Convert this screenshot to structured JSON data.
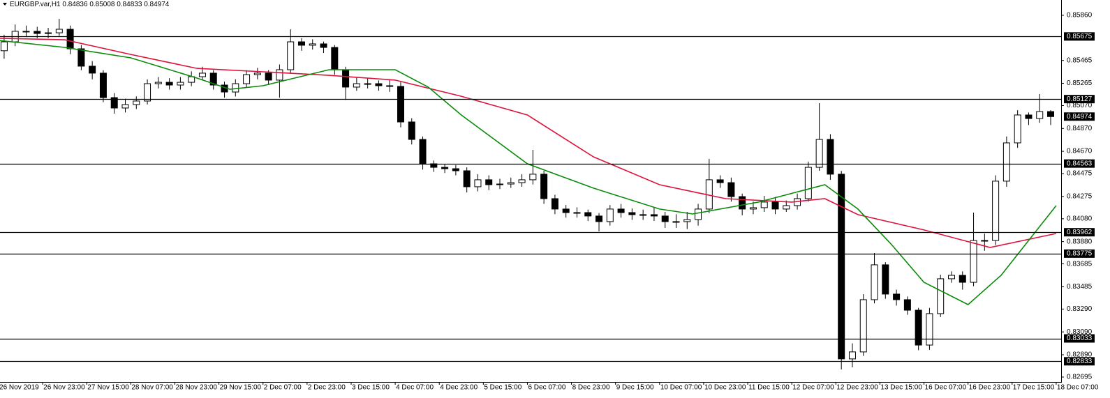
{
  "chart_data": {
    "type": "candlestick",
    "title": "EURGBP.var,H1",
    "ohlc": [
      0.84836,
      0.85008,
      0.84833,
      0.84974
    ],
    "bid": 0.84974,
    "up_color": "#ffffff",
    "down_color": "#000000",
    "x": [
      2,
      6,
      10,
      14,
      18,
      22,
      26,
      30,
      34,
      38,
      42,
      46,
      50,
      54,
      58,
      62,
      66,
      70,
      74,
      78,
      82,
      86,
      90,
      94,
      98,
      102,
      106,
      110,
      114,
      118,
      122,
      126,
      130,
      134,
      138,
      142,
      146,
      150,
      154,
      158,
      162,
      166,
      170,
      174,
      178,
      182,
      186,
      190,
      194,
      198,
      202,
      206,
      210,
      214,
      218,
      222,
      226,
      230,
      234,
      238,
      242,
      246,
      250,
      254,
      258,
      262,
      266,
      270,
      274,
      278,
      282,
      286,
      290,
      294,
      298,
      302,
      306,
      310,
      314,
      318,
      322,
      326,
      330,
      334,
      338,
      342,
      346,
      350,
      354,
      358,
      362,
      366,
      370,
      374,
      378,
      382
    ],
    "open": [
      0.8555,
      0.85628,
      0.8572,
      0.8572,
      0.85701,
      0.85707,
      0.85738,
      0.85567,
      0.85415,
      0.85354,
      0.8514,
      0.85049,
      0.85079,
      0.8511,
      0.85262,
      0.85274,
      0.8525,
      0.85274,
      0.85323,
      0.85354,
      0.8525,
      0.85189,
      0.85262,
      0.85341,
      0.85354,
      0.85293,
      0.85384,
      0.85628,
      0.85598,
      0.8561,
      0.85579,
      0.85384,
      0.85232,
      0.85262,
      0.85262,
      0.85244,
      0.85238,
      0.84927,
      0.84774,
      0.84561,
      0.8453,
      0.84518,
      0.845,
      0.8436,
      0.84421,
      0.84378,
      0.84384,
      0.84396,
      0.84421,
      0.8447,
      0.84256,
      0.84165,
      0.84134,
      0.84134,
      0.84104,
      0.84055,
      0.84165,
      0.84134,
      0.84116,
      0.84116,
      0.84104,
      0.84055,
      0.84055,
      0.84073,
      0.84165,
      0.84421,
      0.84396,
      0.84274,
      0.84165,
      0.84177,
      0.84226,
      0.84165,
      0.84195,
      0.84256,
      0.8453,
      0.84774,
      0.8447,
      0.82854,
      0.82915,
      0.83372,
      0.83677,
      0.83421,
      0.83372,
      0.8328,
      0.82975,
      0.8325,
      0.83555,
      0.83585,
      0.83524,
      0.8389,
      0.8389,
      0.84409,
      0.84744,
      0.84988,
      0.84957,
      0.85018
    ],
    "high": [
      0.8569,
      0.8578,
      0.8577,
      0.8576,
      0.8575,
      0.85829,
      0.8577,
      0.856,
      0.8546,
      0.8538,
      0.8518,
      0.8513,
      0.8515,
      0.853,
      0.8532,
      0.8531,
      0.8532,
      0.8537,
      0.8541,
      0.8538,
      0.8528,
      0.853,
      0.8538,
      0.854,
      0.8538,
      0.8543,
      0.85738,
      0.8566,
      0.8565,
      0.8563,
      0.856,
      0.8541,
      0.8532,
      0.8531,
      0.8529,
      0.853,
      0.8528,
      0.8496,
      0.848,
      0.8459,
      0.8456,
      0.8455,
      0.8453,
      0.8447,
      0.8446,
      0.8443,
      0.8444,
      0.8447,
      0.84683,
      0.845,
      0.8429,
      0.842,
      0.8418,
      0.8416,
      0.8413,
      0.842,
      0.8421,
      0.8417,
      0.8416,
      0.8418,
      0.8414,
      0.8412,
      0.8414,
      0.8421,
      0.84604,
      0.8446,
      0.8444,
      0.843,
      0.8423,
      0.8428,
      0.8427,
      0.8424,
      0.843,
      0.8458,
      0.85091,
      0.8482,
      0.845,
      0.8299,
      0.8342,
      0.8378,
      0.837,
      0.8346,
      0.834,
      0.833,
      0.833,
      0.8359,
      0.8362,
      0.8362,
      0.84134,
      0.8395,
      0.8446,
      0.848,
      0.8503,
      0.8501,
      0.85171,
      0.8503
    ],
    "low": [
      0.8548,
      0.8559,
      0.8567,
      0.8566,
      0.8566,
      0.8568,
      0.8552,
      0.8538,
      0.853,
      0.851,
      0.85,
      0.8501,
      0.8504,
      0.8508,
      0.8522,
      0.8521,
      0.8521,
      0.8524,
      0.8529,
      0.8521,
      0.8514,
      0.8515,
      0.8523,
      0.853,
      0.8525,
      0.8514,
      0.8535,
      0.8555,
      0.8556,
      0.8553,
      0.8534,
      0.8512,
      0.852,
      0.8522,
      0.852,
      0.8519,
      0.8488,
      0.8473,
      0.8451,
      0.8449,
      0.8448,
      0.8446,
      0.8431,
      0.8432,
      0.8433,
      0.8434,
      0.8435,
      0.8436,
      0.8438,
      0.8421,
      0.8412,
      0.8409,
      0.8409,
      0.8406,
      0.8397,
      0.8402,
      0.8409,
      0.8407,
      0.8407,
      0.8406,
      0.84,
      0.84,
      0.8399,
      0.8402,
      0.8413,
      0.8435,
      0.8423,
      0.8411,
      0.8412,
      0.8414,
      0.8412,
      0.8414,
      0.8416,
      0.8423,
      0.845,
      0.8442,
      0.82762,
      0.8278,
      0.8288,
      0.8334,
      0.8338,
      0.8332,
      0.8324,
      0.8293,
      0.82933,
      0.8322,
      0.8352,
      0.8346,
      0.8349,
      0.838,
      0.8385,
      0.8436,
      0.847,
      0.849,
      0.8492,
      0.849
    ],
    "close": [
      0.85628,
      0.8572,
      0.8572,
      0.85701,
      0.85707,
      0.85738,
      0.85567,
      0.85415,
      0.85354,
      0.8514,
      0.85049,
      0.85079,
      0.8511,
      0.85262,
      0.85274,
      0.8525,
      0.85274,
      0.85323,
      0.85354,
      0.8525,
      0.85189,
      0.85262,
      0.85341,
      0.85354,
      0.85293,
      0.85384,
      0.85628,
      0.85598,
      0.8561,
      0.85579,
      0.85384,
      0.85232,
      0.85262,
      0.85262,
      0.85244,
      0.85238,
      0.84927,
      0.84774,
      0.84561,
      0.8453,
      0.84518,
      0.845,
      0.8436,
      0.84421,
      0.84378,
      0.84384,
      0.84396,
      0.84421,
      0.8447,
      0.84256,
      0.84165,
      0.84134,
      0.84134,
      0.84104,
      0.84055,
      0.84165,
      0.84134,
      0.84116,
      0.84116,
      0.84104,
      0.84055,
      0.84055,
      0.84073,
      0.84165,
      0.84421,
      0.84396,
      0.84274,
      0.84165,
      0.84177,
      0.84226,
      0.84165,
      0.84195,
      0.84256,
      0.8453,
      0.84774,
      0.8447,
      0.82854,
      0.82915,
      0.83372,
      0.83677,
      0.83421,
      0.83372,
      0.8328,
      0.82975,
      0.8325,
      0.83555,
      0.83585,
      0.83524,
      0.8389,
      0.8389,
      0.84409,
      0.84744,
      0.84988,
      0.84957,
      0.85018,
      0.84974
    ],
    "moving_averages": [
      {
        "color": "#dc143c",
        "x": [
          0,
          24,
          48,
          72,
          96,
          120,
          144,
          168,
          192,
          216,
          240,
          264,
          288,
          300,
          312,
          336,
          360,
          384
        ],
        "values": [
          0.85659,
          0.85646,
          0.85518,
          0.85396,
          0.85366,
          0.85335,
          0.85293,
          0.85152,
          0.84988,
          0.84622,
          0.84378,
          0.84256,
          0.84226,
          0.84256,
          0.84116,
          0.83982,
          0.83829,
          0.83951
        ]
      },
      {
        "color": "#0b8a0b",
        "x": [
          0,
          24,
          48,
          72,
          84,
          96,
          120,
          144,
          156,
          168,
          192,
          216,
          240,
          252,
          276,
          300,
          312,
          324,
          336,
          352,
          364,
          384
        ],
        "values": [
          0.8564,
          0.85579,
          0.85488,
          0.85311,
          0.85213,
          0.85244,
          0.85384,
          0.85384,
          0.85232,
          0.84988,
          0.84561,
          0.84348,
          0.84165,
          0.84122,
          0.84226,
          0.84378,
          0.84165,
          0.8386,
          0.83524,
          0.83329,
          0.83585,
          0.84195
        ]
      }
    ],
    "levels": [
      0.85675,
      0.85127,
      0.84563,
      0.83962,
      0.83775,
      0.83033,
      0.82833
    ],
    "xlim": [
      0.5,
      385.8
    ],
    "ylim": [
      0.82652,
      0.85994
    ],
    "yticks": [
      {
        "value": 0.8586,
        "label": "0.85860"
      },
      0.85465,
      0.85265,
      {
        "value": 0.8507,
        "label": "0.85070"
      },
      {
        "value": 0.8487,
        "label": "0.84870"
      },
      {
        "value": 0.8467,
        "label": "0.84670"
      },
      0.84475,
      0.84275,
      {
        "value": 0.8408,
        "label": "0.84080"
      },
      {
        "value": 0.8388,
        "label": "0.83880"
      },
      0.83685,
      0.83485,
      {
        "value": 0.8329,
        "label": "0.83290"
      },
      {
        "value": 0.8309,
        "label": "0.83090"
      },
      {
        "value": 0.8289,
        "label": "0.82890"
      },
      0.82695
    ],
    "xticks": [
      {
        "value": 0,
        "label": "26 Nov 2019"
      },
      {
        "value": 16,
        "label": "26 Nov 23:00"
      },
      {
        "value": 32,
        "label": "27 Nov 15:00"
      },
      {
        "value": 48,
        "label": "28 Nov 07:00"
      },
      {
        "value": 64,
        "label": "28 Nov 23:00"
      },
      {
        "value": 80,
        "label": "29 Nov 15:00"
      },
      {
        "value": 96,
        "label": "2 Dec 07:00"
      },
      {
        "value": 112,
        "label": "2 Dec 23:00"
      },
      {
        "value": 128,
        "label": "3 Dec 15:00"
      },
      {
        "value": 144,
        "label": "4 Dec 07:00"
      },
      {
        "value": 160,
        "label": "4 Dec 23:00"
      },
      {
        "value": 176,
        "label": "5 Dec 15:00"
      },
      {
        "value": 192,
        "label": "6 Dec 07:00"
      },
      {
        "value": 208,
        "label": "8 Dec 23:00"
      },
      {
        "value": 224,
        "label": "9 Dec 15:00"
      },
      {
        "value": 240,
        "label": "10 Dec 07:00"
      },
      {
        "value": 256,
        "label": "10 Dec 23:00"
      },
      {
        "value": 272,
        "label": "11 Dec 15:00"
      },
      {
        "value": 288,
        "label": "12 Dec 07:00"
      },
      {
        "value": 304,
        "label": "12 Dec 23:00"
      },
      {
        "value": 320,
        "label": "13 Dec 15:00"
      },
      {
        "value": 336,
        "label": "16 Dec 07:00"
      },
      {
        "value": 352,
        "label": "16 Dec 23:00"
      },
      {
        "value": 368,
        "label": "17 Dec 15:00"
      },
      {
        "value": 384,
        "label": "18 Dec 07:00"
      }
    ]
  }
}
